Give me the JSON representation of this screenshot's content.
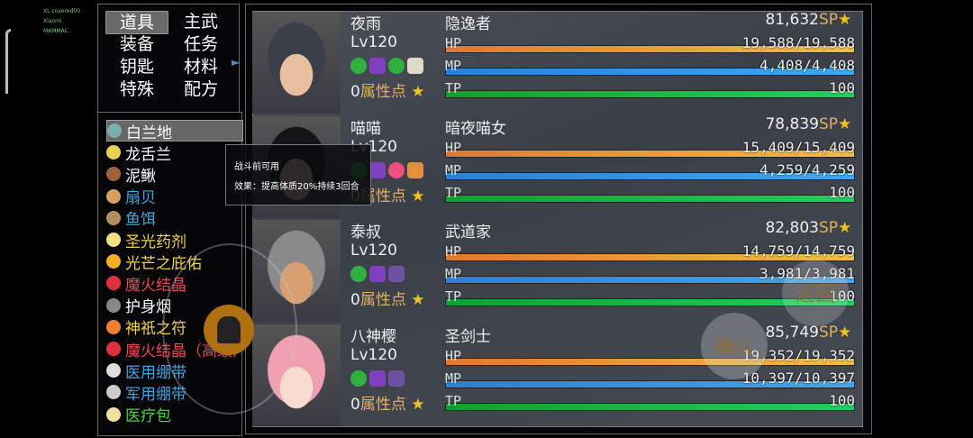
{
  "debug_text": [
    "XL covered00",
    "Xiaomi",
    "MAMMAC"
  ],
  "categories": [
    {
      "label": "道具",
      "selected": true
    },
    {
      "label": "主武"
    },
    {
      "label": "装备"
    },
    {
      "label": "任务"
    },
    {
      "label": "钥匙"
    },
    {
      "label": "材料"
    },
    {
      "label": "特殊"
    },
    {
      "label": "配方"
    }
  ],
  "items": [
    {
      "label": "白兰地",
      "color": "#ffffff",
      "icon": "brandy-bottle-icon",
      "icon_color": "#7ab0a8",
      "selected": true
    },
    {
      "label": "龙舌兰",
      "color": "#ffffff",
      "icon": "tequila-bottle-icon",
      "icon_color": "#e8d050"
    },
    {
      "label": "泥鳅",
      "color": "#ffffff",
      "icon": "loach-icon",
      "icon_color": "#a0603a"
    },
    {
      "label": "扇贝",
      "color": "#3aa8e0",
      "icon": "scallop-icon",
      "icon_color": "#d8a060"
    },
    {
      "label": "鱼饵",
      "color": "#3aa8e0",
      "icon": "bait-icon",
      "icon_color": "#b09060"
    },
    {
      "label": "圣光药剂",
      "color": "#f0d040",
      "icon": "potion-icon",
      "icon_color": "#f0e080"
    },
    {
      "label": "光芒之庇佑",
      "color": "#f0d040",
      "icon": "gold-cube-icon",
      "icon_color": "#f0b020"
    },
    {
      "label": "魔火结晶",
      "color": "#f04050",
      "icon": "red-crystal-icon",
      "icon_color": "#e03040"
    },
    {
      "label": "护身烟",
      "color": "#ffffff",
      "icon": "smoke-icon",
      "icon_color": "#888"
    },
    {
      "label": "神祇之符",
      "color": "#f0d040",
      "icon": "talisman-icon",
      "icon_color": "#f08030"
    },
    {
      "label": "魔火结晶（高级）",
      "color": "#f04050",
      "icon": "red-orb-icon",
      "icon_color": "#e03040"
    },
    {
      "label": "医用绷带",
      "color": "#3aa8e0",
      "icon": "bandage-icon",
      "icon_color": "#ddd"
    },
    {
      "label": "军用绷带",
      "color": "#3aa8e0",
      "icon": "bandage-roll-icon",
      "icon_color": "#ccc"
    },
    {
      "label": "医疗包",
      "color": "#50d040",
      "icon": "medkit-icon",
      "icon_color": "#f0e0a0"
    }
  ],
  "tooltip": {
    "line1": "战斗前可用",
    "line2": "效果：提高体质20%持续3回合"
  },
  "colors": {
    "hp_start": "#e07830",
    "hp_end": "#f0c040",
    "mp_start": "#2a80d8",
    "mp_end": "#40a8f0",
    "tp_start": "#10a030",
    "tp_end": "#20d060",
    "sp_label": "#e0b060",
    "attr_label": "#e0b060"
  },
  "labels": {
    "hp": "HP",
    "mp": "MP",
    "tp": "TP",
    "sp": "SP",
    "attr": "属性点"
  },
  "actors": [
    {
      "name": "夜雨",
      "class": "隐逸者",
      "level": "Lv120",
      "sp": "81,632",
      "hp": "19,588/19,588",
      "mp": "4,408/4,408",
      "tp": "100",
      "hp_pct": 100,
      "mp_pct": 100,
      "tp_pct": 100,
      "attr_points": "0",
      "hair": "#3a3f4a",
      "skin": "#e8c0a0",
      "states": [
        "green-orb-icon",
        "purple-hexagram-icon",
        "green-orb-icon",
        "white-skull-icon"
      ]
    },
    {
      "name": "喵喵",
      "class": "暗夜喵女",
      "level": "Lv120",
      "sp": "78,839",
      "hp": "15,409/15,409",
      "mp": "4,259/4,259",
      "tp": "100",
      "hp_pct": 100,
      "mp_pct": 100,
      "tp_pct": 100,
      "attr_points": "0",
      "hair": "#151518",
      "skin": "#f0d8d0",
      "states": [
        "green-orb-icon",
        "purple-hexagram-icon",
        "pink-heart-icon",
        "paw-icon"
      ]
    },
    {
      "name": "泰叔",
      "class": "武道家",
      "level": "Lv120",
      "sp": "82,803",
      "hp": "14,759/14,759",
      "mp": "3,981/3,981",
      "tp": "100",
      "hp_pct": 100,
      "mp_pct": 100,
      "tp_pct": 100,
      "attr_points": "0",
      "hair": "#8a8a8a",
      "skin": "#d8a070",
      "states": [
        "green-orb-icon",
        "purple-hexagram-icon",
        "swirl-icon"
      ]
    },
    {
      "name": "八神樱",
      "class": "圣剑士",
      "level": "Lv120",
      "sp": "85,749",
      "hp": "19,352/19,352",
      "mp": "10,397/10,397",
      "tp": "100",
      "hp_pct": 100,
      "mp_pct": 100,
      "tp_pct": 100,
      "attr_points": "0",
      "hair": "#f0a0b0",
      "skin": "#f8dcd0",
      "states": [
        "green-orb-icon",
        "purple-hexagram-icon",
        "swirl-icon"
      ]
    }
  ],
  "overlay_buttons": {
    "confirm": "确认",
    "back": "返回"
  }
}
